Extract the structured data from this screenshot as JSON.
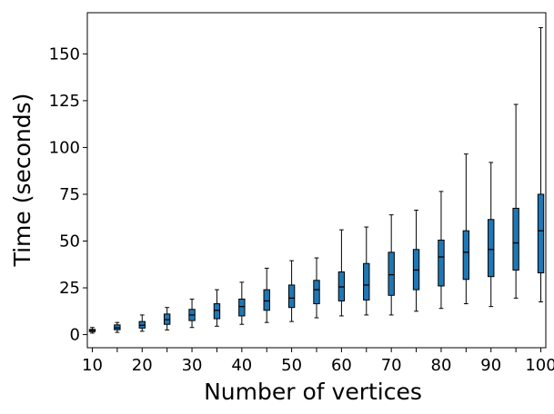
{
  "chart_data": {
    "type": "boxplot",
    "title": "",
    "xlabel": "Number of vertices",
    "ylabel": "Time (seconds)",
    "ylim": [
      -7,
      172
    ],
    "xlim": [
      9,
      101
    ],
    "yticks": [
      0,
      25,
      50,
      75,
      100,
      125,
      150
    ],
    "xtick_labels": [
      "10",
      "20",
      "30",
      "40",
      "50",
      "60",
      "70",
      "80",
      "90",
      "100"
    ],
    "box_color": "#1f77b4",
    "series": [
      {
        "x": 10,
        "whisker_low": 0.8,
        "q1": 1.6,
        "median": 2.2,
        "q3": 2.8,
        "whisker_high": 3.8
      },
      {
        "x": 15,
        "whisker_low": 1.2,
        "q1": 2.6,
        "median": 3.6,
        "q3": 5.2,
        "whisker_high": 6.5
      },
      {
        "x": 20,
        "whisker_low": 1.8,
        "q1": 3.5,
        "median": 5.0,
        "q3": 7.0,
        "whisker_high": 10.5
      },
      {
        "x": 25,
        "whisker_low": 2.5,
        "q1": 5.5,
        "median": 8.0,
        "q3": 11.0,
        "whisker_high": 14.5
      },
      {
        "x": 30,
        "whisker_low": 3.8,
        "q1": 7.5,
        "median": 10.5,
        "q3": 13.5,
        "whisker_high": 19.0
      },
      {
        "x": 35,
        "whisker_low": 4.5,
        "q1": 8.5,
        "median": 13.0,
        "q3": 16.5,
        "whisker_high": 24.0
      },
      {
        "x": 40,
        "whisker_low": 5.5,
        "q1": 10.0,
        "median": 15.0,
        "q3": 19.0,
        "whisker_high": 28.0
      },
      {
        "x": 45,
        "whisker_low": 6.5,
        "q1": 13.0,
        "median": 18.0,
        "q3": 24.0,
        "whisker_high": 35.5
      },
      {
        "x": 50,
        "whisker_low": 7.0,
        "q1": 14.5,
        "median": 19.5,
        "q3": 26.5,
        "whisker_high": 39.5
      },
      {
        "x": 55,
        "whisker_low": 9.0,
        "q1": 16.5,
        "median": 24.0,
        "q3": 29.0,
        "whisker_high": 41.0
      },
      {
        "x": 60,
        "whisker_low": 10.0,
        "q1": 18.0,
        "median": 25.5,
        "q3": 33.5,
        "whisker_high": 56.0
      },
      {
        "x": 65,
        "whisker_low": 10.5,
        "q1": 18.5,
        "median": 26.5,
        "q3": 38.0,
        "whisker_high": 57.5
      },
      {
        "x": 70,
        "whisker_low": 10.5,
        "q1": 21.0,
        "median": 32.0,
        "q3": 44.0,
        "whisker_high": 64.0
      },
      {
        "x": 75,
        "whisker_low": 12.5,
        "q1": 24.0,
        "median": 34.5,
        "q3": 45.5,
        "whisker_high": 66.5
      },
      {
        "x": 80,
        "whisker_low": 14.0,
        "q1": 26.0,
        "median": 41.5,
        "q3": 50.5,
        "whisker_high": 76.5
      },
      {
        "x": 85,
        "whisker_low": 16.5,
        "q1": 29.5,
        "median": 44.0,
        "q3": 55.5,
        "whisker_high": 96.5
      },
      {
        "x": 90,
        "whisker_low": 15.0,
        "q1": 31.0,
        "median": 45.5,
        "q3": 61.5,
        "whisker_high": 92.0
      },
      {
        "x": 95,
        "whisker_low": 19.5,
        "q1": 34.5,
        "median": 49.0,
        "q3": 67.5,
        "whisker_high": 123.0
      },
      {
        "x": 100,
        "whisker_low": 17.5,
        "q1": 33.0,
        "median": 55.5,
        "q3": 75.0,
        "whisker_high": 164.0
      }
    ]
  }
}
